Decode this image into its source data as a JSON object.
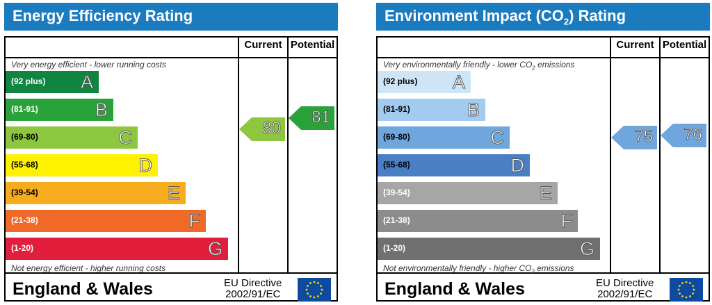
{
  "energy": {
    "title": "Energy Efficiency Rating",
    "col_current": "Current",
    "col_potential": "Potential",
    "top_note": "Very energy efficient - lower running costs",
    "bottom_note": "Not energy efficient - higher running costs",
    "bands": [
      {
        "range": "(92 plus)",
        "letter": "A",
        "color": "#0f8540"
      },
      {
        "range": "(81-91)",
        "letter": "B",
        "color": "#2aa23a"
      },
      {
        "range": "(69-80)",
        "letter": "C",
        "color": "#8dc63f"
      },
      {
        "range": "(55-68)",
        "letter": "D",
        "color": "#fff200"
      },
      {
        "range": "(39-54)",
        "letter": "E",
        "color": "#f7ac1e"
      },
      {
        "range": "(21-38)",
        "letter": "F",
        "color": "#ef6a28"
      },
      {
        "range": "(1-20)",
        "letter": "G",
        "color": "#e31d3c"
      }
    ],
    "current": {
      "value": "80",
      "color": "#8dc63f"
    },
    "potential": {
      "value": "81",
      "color": "#2aa23a"
    },
    "footer": "England & Wales",
    "eu_line1": "EU Directive",
    "eu_line2": "2002/91/EC"
  },
  "environment": {
    "title_pre": "Environment Impact (CO",
    "title_sub": "2",
    "title_post": ") Rating",
    "col_current": "Current",
    "col_potential": "Potential",
    "top_note_pre": "Very environmentally friendly - lower CO",
    "top_note_sub": "2",
    "top_note_post": " emissions",
    "bottom_note_pre": "Not environmentally friendly - higher CO",
    "bottom_note_sub": "2",
    "bottom_note_post": " emissions",
    "bands": [
      {
        "range": "(92 plus)",
        "letter": "A",
        "color": "#cde5f7"
      },
      {
        "range": "(81-91)",
        "letter": "B",
        "color": "#a2cbef"
      },
      {
        "range": "(69-80)",
        "letter": "C",
        "color": "#6ea6dd"
      },
      {
        "range": "(55-68)",
        "letter": "D",
        "color": "#4a7fc4"
      },
      {
        "range": "(39-54)",
        "letter": "E",
        "color": "#a6a6a6"
      },
      {
        "range": "(21-38)",
        "letter": "F",
        "color": "#8c8c8c"
      },
      {
        "range": "(1-20)",
        "letter": "G",
        "color": "#707070"
      }
    ],
    "current": {
      "value": "75",
      "color": "#6ea6dd"
    },
    "potential": {
      "value": "76",
      "color": "#6ea6dd"
    },
    "footer": "England & Wales",
    "eu_line1": "EU Directive",
    "eu_line2": "2002/91/EC"
  }
}
